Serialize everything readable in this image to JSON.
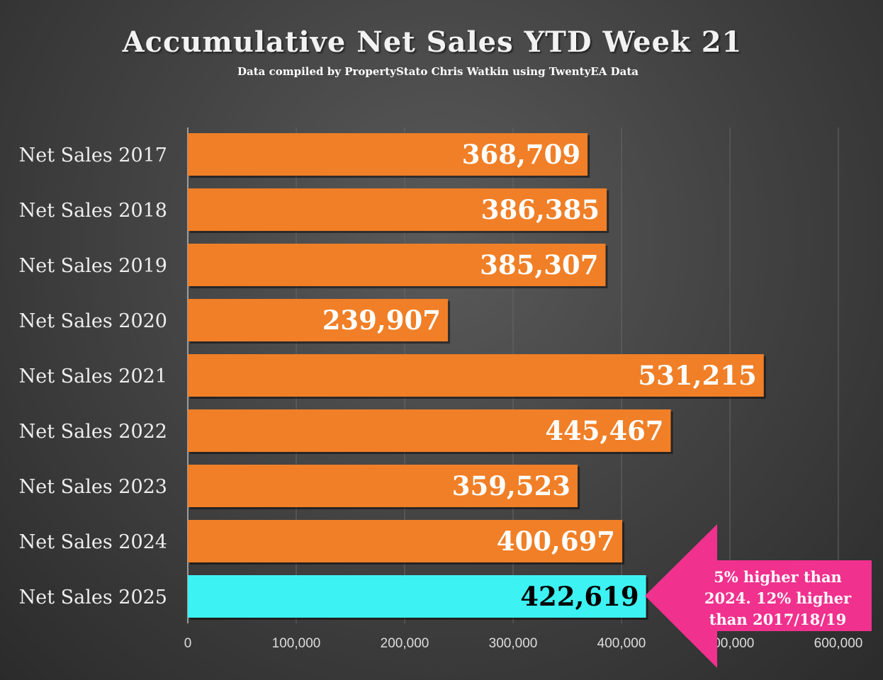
{
  "chart_data": {
    "type": "bar",
    "orientation": "horizontal",
    "title": "Accumulative Net Sales YTD Week 21",
    "subtitle": "Data compiled by PropertyStato Chris Watkin using TwentyEA Data",
    "categories": [
      "Net Sales 2017",
      "Net Sales 2018",
      "Net Sales 2019",
      "Net Sales 2020",
      "Net Sales 2021",
      "Net Sales 2022",
      "Net Sales 2023",
      "Net Sales 2024",
      "Net Sales 2025"
    ],
    "values": [
      368709,
      386385,
      385307,
      239907,
      531215,
      445467,
      359523,
      400697,
      422619
    ],
    "labels": [
      "368,709",
      "386,385",
      "385,307",
      "239,907",
      "531,215",
      "445,467",
      "359,523",
      "400,697",
      "422,619"
    ],
    "xlim": [
      0,
      600000
    ],
    "xticks": [
      0,
      100000,
      200000,
      300000,
      400000,
      500000,
      600000
    ],
    "xtick_labels": [
      "0",
      "100,000",
      "200,000",
      "300,000",
      "400,000",
      "500,000",
      "600,000"
    ],
    "grid": true,
    "colors": {
      "bar": "#f07f27",
      "highlight": "#3df2f2",
      "arrow": "#f0318e"
    },
    "highlight_index": 8,
    "annotation": "5% higher than 2024. 12% higher than 2017/18/19"
  }
}
